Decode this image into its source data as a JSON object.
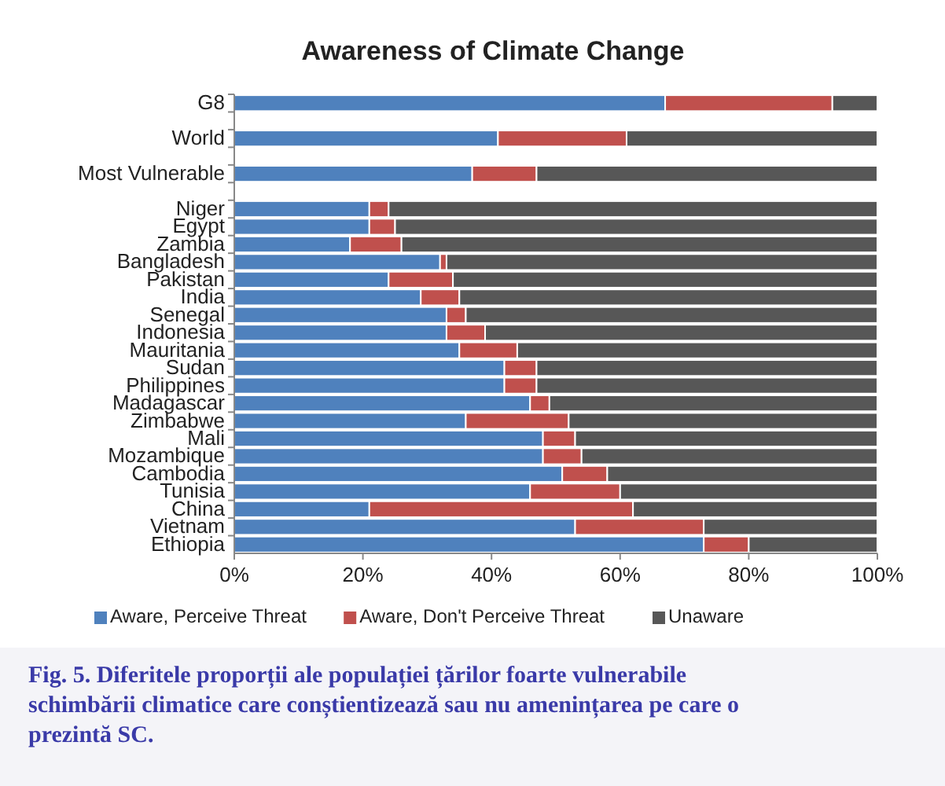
{
  "chart_data": {
    "type": "bar",
    "orientation": "horizontal",
    "stacked": true,
    "title": "Awareness of Climate Change",
    "categories": [
      "G8",
      null,
      "World",
      null,
      "Most Vulnerable",
      null,
      "Niger",
      "Egypt",
      "Zambia",
      "Bangladesh",
      "Pakistan",
      "India",
      "Senegal",
      "Indonesia",
      "Mauritania",
      "Sudan",
      "Philippines",
      "Madagascar",
      "Zimbabwe",
      "Mali",
      "Mozambique",
      "Cambodia",
      "Tunisia",
      "China",
      "Vietnam",
      "Ethiopia"
    ],
    "series": [
      {
        "name": "Aware, Perceive Threat",
        "color": "#4f81bd",
        "values": [
          67,
          null,
          41,
          null,
          37,
          null,
          21,
          21,
          18,
          32,
          24,
          29,
          33,
          33,
          35,
          42,
          42,
          46,
          36,
          48,
          48,
          51,
          46,
          21,
          53,
          73
        ]
      },
      {
        "name": "Aware, Don't Perceive Threat",
        "color": "#c0504d",
        "values": [
          26,
          null,
          20,
          null,
          10,
          null,
          3,
          4,
          8,
          1,
          10,
          6,
          3,
          6,
          9,
          5,
          5,
          3,
          16,
          5,
          6,
          7,
          14,
          41,
          20,
          7
        ]
      },
      {
        "name": "Unaware",
        "color": "#575757",
        "values": [
          7,
          null,
          39,
          null,
          53,
          null,
          76,
          75,
          74,
          67,
          66,
          65,
          64,
          61,
          56,
          53,
          53,
          51,
          48,
          47,
          46,
          42,
          40,
          38,
          27,
          20
        ]
      }
    ],
    "xlim": [
      0,
      100
    ],
    "xticks": [
      {
        "value": 0,
        "label": "0%"
      },
      {
        "value": 20,
        "label": "20%"
      },
      {
        "value": 40,
        "label": "40%"
      },
      {
        "value": 60,
        "label": "60%"
      },
      {
        "value": 80,
        "label": "80%"
      },
      {
        "value": 100,
        "label": "100%"
      }
    ],
    "grid": false,
    "legend": "bottom",
    "annotations": [
      "Fig. 5. Diferitele proporții ale populației țărilor foarte vulnerabile schimbării climatice care conștientizează sau nu amenințarea pe care o prezintă SC."
    ]
  }
}
